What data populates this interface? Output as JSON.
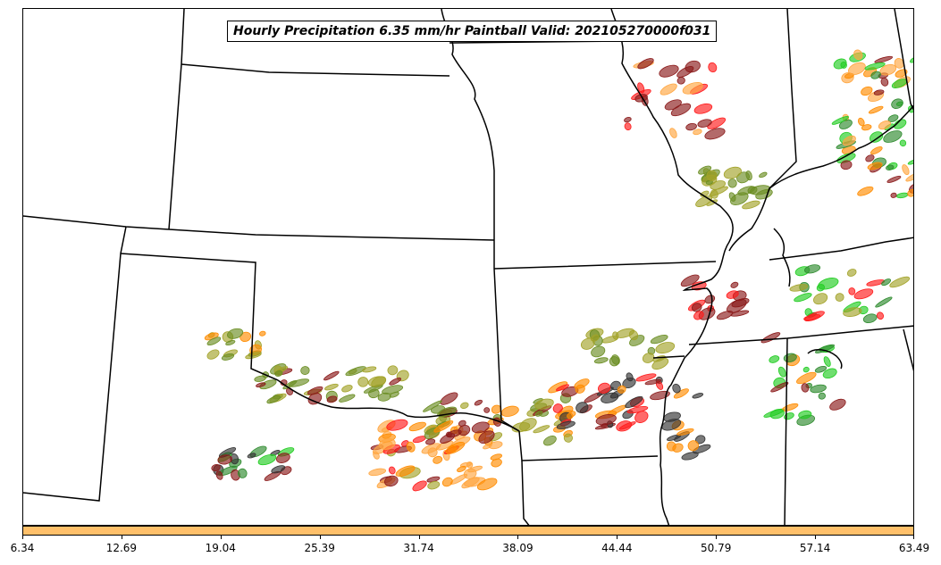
{
  "title": "Hourly Precipitation 6.35 mm/hr Paintball Valid: 202105270000f031",
  "colorbar": {
    "color": "#ffc06a",
    "ticks": [
      "6.34",
      "12.69",
      "19.04",
      "25.39",
      "31.74",
      "38.09",
      "44.44",
      "50.79",
      "57.14",
      "63.49"
    ]
  },
  "member_colors": [
    "#8b1a1a",
    "#ff1a1a",
    "#ff8c00",
    "#ffa640",
    "#a3a32a",
    "#6b8e23",
    "#2e8b2e",
    "#22cc22",
    "#333333"
  ]
}
